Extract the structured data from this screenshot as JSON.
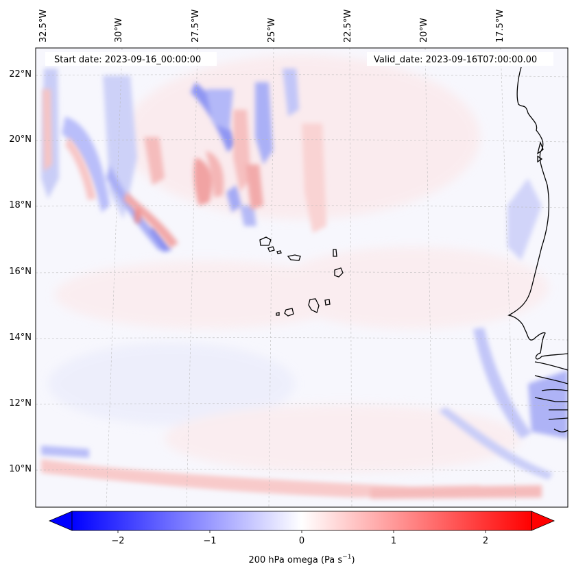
{
  "header": {
    "start_date": "Start date: 2023-09-16_00:00:00",
    "valid_date": "Valid_date: 2023-09-16T07:00:00.00"
  },
  "longitude_labels": [
    "32.5°W",
    "30°W",
    "27.5°W",
    "25°W",
    "22.5°W",
    "20°W",
    "17.5°W"
  ],
  "latitude_labels": [
    "22°N",
    "20°N",
    "18°N",
    "16°N",
    "14°N",
    "12°N",
    "10°N"
  ],
  "colorbar": {
    "label": "200 hPa omega (Pa s",
    "label_sup": "−1",
    "label_end": ")",
    "ticks": [
      "−2",
      "−1",
      "0",
      "1",
      "2"
    ],
    "range": [
      -2.75,
      2.75
    ],
    "colormap": "bwr",
    "extend": "both"
  },
  "colors": {
    "negative": "#0000ff",
    "neutral": "#ffffff",
    "positive": "#ff0000",
    "coastline": "#000000",
    "gridline": "#b8b8b8"
  }
}
